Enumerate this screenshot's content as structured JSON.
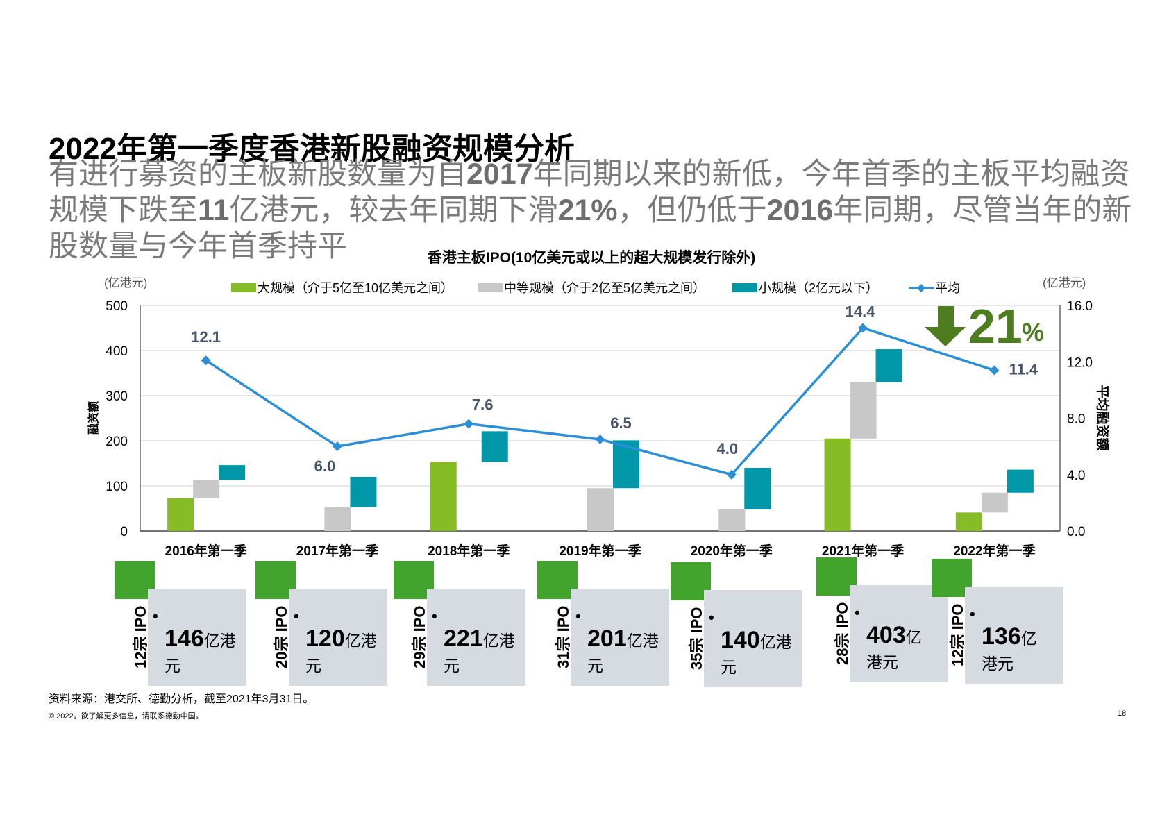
{
  "page": {
    "title": "2022年第一季度香港新股融资规模分析",
    "subtitle_parts": [
      {
        "t": "有进行募资的主板新股数量为自",
        "b": false
      },
      {
        "t": "2017",
        "b": true
      },
      {
        "t": "年同期以来的新低，今年首季的主板平均融资规模下跌至",
        "b": false
      },
      {
        "t": "11",
        "b": true
      },
      {
        "t": "亿港元，较去年同期下滑",
        "b": false
      },
      {
        "t": "21%",
        "b": true
      },
      {
        "t": "，但仍低于",
        "b": false
      },
      {
        "t": "2016",
        "b": true
      },
      {
        "t": "年同期，尽管当年的新股数量与今年首季持平",
        "b": false
      }
    ],
    "footnote": "资料来源：港交所、德勤分析，截至2021年3月31日。",
    "copyright": "© 2022。欲了解更多信息，请联系德勤中国。",
    "page_number": "18"
  },
  "chart_data": {
    "type": "bar",
    "title": "香港主板IPO(10亿美元或以上的超大规模发行除外)",
    "left_unit": "(亿港元)",
    "right_unit": "(亿港元)",
    "ylabel": "融资额",
    "y2label": "平均融资额",
    "ylim": [
      0,
      500
    ],
    "y2lim": [
      0,
      16
    ],
    "yticks": [
      0,
      100,
      200,
      300,
      400,
      500
    ],
    "y2ticks": [
      "0.0",
      "4.0",
      "8.0",
      "12.0",
      "16.0"
    ],
    "categories": [
      "2016年第一季",
      "2017年第一季",
      "2018年第一季",
      "2019年第一季",
      "2020年第一季",
      "2021年第一季",
      "2022年第一季"
    ],
    "series": [
      {
        "name": "大规模（介于5亿至10亿美元之间）",
        "color": "#86bc25",
        "values": [
          73,
          0,
          153,
          0,
          0,
          205,
          41
        ]
      },
      {
        "name": "中等规模（介于2亿至5亿美元之间）",
        "color": "#c8c8c8",
        "values": [
          40,
          53,
          0,
          95,
          48,
          125,
          44
        ]
      },
      {
        "name": "小规模（2亿元以下）",
        "color": "#0097a9",
        "values": [
          33,
          67,
          68,
          106,
          92,
          73,
          51
        ]
      }
    ],
    "average": {
      "name": "平均",
      "color": "#2a8fd6",
      "values": [
        12.1,
        6.0,
        7.6,
        6.5,
        4.0,
        14.4,
        11.4
      ],
      "labels": [
        "12.1",
        "6.0",
        "7.6",
        "6.5",
        "4.0",
        "14.4",
        "11.4"
      ]
    },
    "callout": {
      "value": "21",
      "unit": "%",
      "direction": "down",
      "color": "#4e7d1f"
    }
  },
  "cards": [
    {
      "count": "12宗 IPO",
      "value": "146",
      "unit": "亿港",
      "unit2": "元"
    },
    {
      "count": "20宗 IPO",
      "value": "120",
      "unit": "亿港",
      "unit2": "元"
    },
    {
      "count": "29宗 IPO",
      "value": "221",
      "unit": "亿港",
      "unit2": "元"
    },
    {
      "count": "31宗 IPO",
      "value": "201",
      "unit": "亿港",
      "unit2": "元"
    },
    {
      "count": "35宗 IPO",
      "value": "140",
      "unit": "亿港",
      "unit2": "元"
    },
    {
      "count": "28宗 IPO",
      "value": "403",
      "unit": "亿",
      "unit2": "港元"
    },
    {
      "count": "12宗 IPO",
      "value": "136",
      "unit": "亿",
      "unit2": "港元"
    }
  ],
  "card_bullet": "•"
}
